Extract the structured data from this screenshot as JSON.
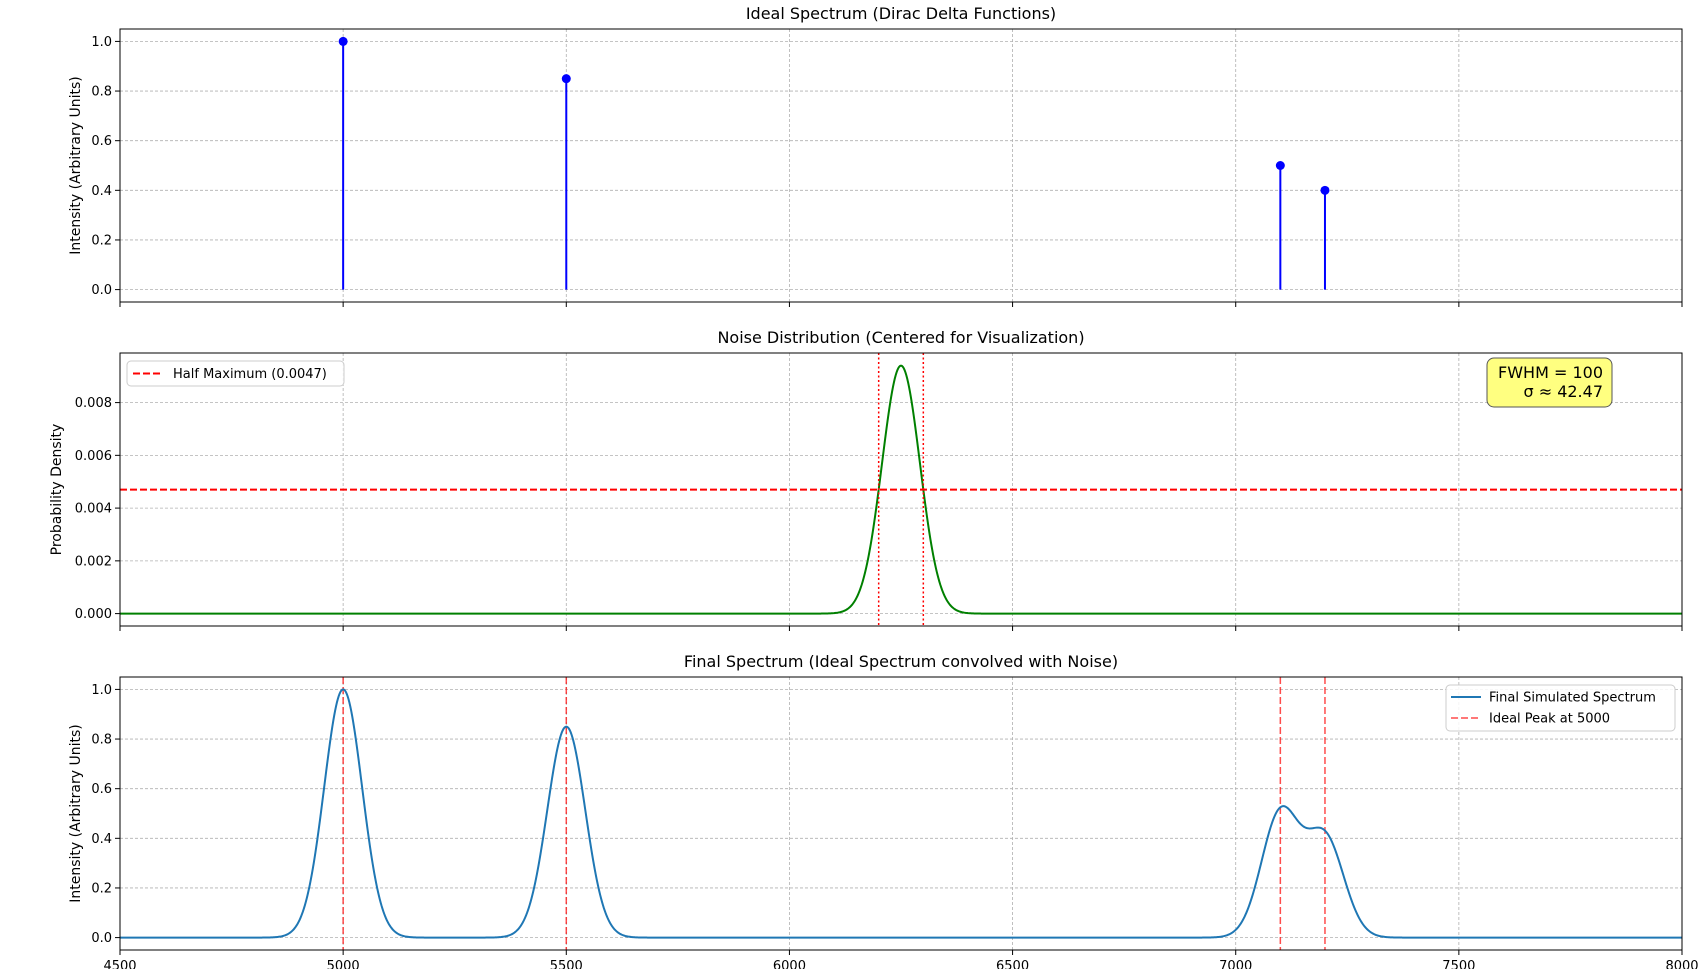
{
  "chart_data": [
    {
      "type": "stem",
      "title": "Ideal Spectrum (Dirac Delta Functions)",
      "xlabel": "",
      "ylabel": "Intensity (Arbitrary Units)",
      "xlim": [
        4500,
        8000
      ],
      "ylim": [
        -0.05,
        1.05
      ],
      "yticks": [
        "0.0",
        "0.2",
        "0.4",
        "0.6",
        "0.8",
        "1.0"
      ],
      "grid": true,
      "color": "#0000ff",
      "x": [
        5000,
        5500,
        7100,
        7200
      ],
      "values": [
        1.0,
        0.85,
        0.5,
        0.4
      ]
    },
    {
      "type": "line",
      "title": "Noise Distribution (Centered for Visualization)",
      "xlabel": "",
      "ylabel": "Probability Density",
      "xlim": [
        4500,
        8000
      ],
      "ylim": [
        -0.00047,
        0.00988
      ],
      "yticks": [
        "0.000",
        "0.002",
        "0.004",
        "0.006",
        "0.008"
      ],
      "grid": true,
      "curve": {
        "type": "gaussian",
        "center": 6250,
        "sigma": 42.47,
        "peak": 0.0094,
        "color": "#008000"
      },
      "half_maximum": {
        "value": 0.0047,
        "label": "Half Maximum (0.0047)",
        "color": "#ff0000"
      },
      "fwhm_bounds": [
        6200,
        6300
      ],
      "annotation": {
        "line1": "FWHM = 100",
        "line2": "σ ≈ 42.47",
        "box_color": "#ffff80"
      },
      "legend": {
        "position": "upper-left"
      }
    },
    {
      "type": "line",
      "title": "Final Spectrum (Ideal Spectrum convolved with Noise)",
      "xlabel": "",
      "ylabel": "Intensity (Arbitrary Units)",
      "xlim": [
        4500,
        8000
      ],
      "ylim": [
        -0.05,
        1.05
      ],
      "yticks": [
        "0.0",
        "0.2",
        "0.4",
        "0.6",
        "0.8",
        "1.0"
      ],
      "xticks": [
        "4500",
        "5000",
        "5500",
        "6000",
        "6500",
        "7000",
        "7500",
        "8000"
      ],
      "grid": true,
      "series": [
        {
          "name": "Final Simulated Spectrum",
          "color": "#1f77b4",
          "sigma": 42.47,
          "peaks": [
            {
              "x": 5000,
              "a": 1.0
            },
            {
              "x": 5500,
              "a": 0.85
            },
            {
              "x": 7100,
              "a": 0.5
            },
            {
              "x": 7200,
              "a": 0.4
            }
          ]
        }
      ],
      "reference_lines": {
        "name": "Ideal Peak at 5000",
        "x": [
          5000,
          5500,
          7100,
          7200
        ],
        "color": "#ff0000"
      },
      "legend": {
        "position": "upper-right"
      }
    }
  ]
}
